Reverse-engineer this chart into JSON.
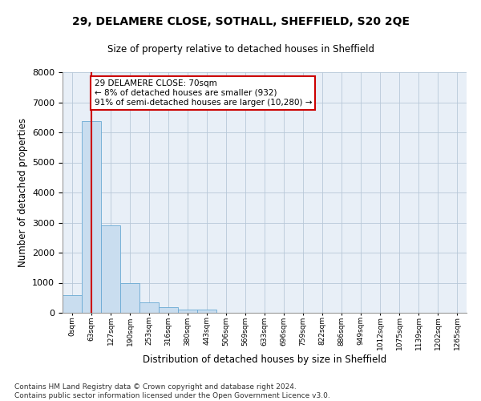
{
  "title": "29, DELAMERE CLOSE, SOTHALL, SHEFFIELD, S20 2QE",
  "subtitle": "Size of property relative to detached houses in Sheffield",
  "xlabel": "Distribution of detached houses by size in Sheffield",
  "ylabel": "Number of detached properties",
  "bar_color": "#c9ddef",
  "bar_edge_color": "#6aaad4",
  "background_color": "#ffffff",
  "plot_bg_color": "#e8eff7",
  "grid_color": "#b8c8d8",
  "annotation_box_color": "#cc0000",
  "vline_color": "#cc0000",
  "vline_x": 1.0,
  "annotation_text": "29 DELAMERE CLOSE: 70sqm\n← 8% of detached houses are smaller (932)\n91% of semi-detached houses are larger (10,280) →",
  "categories": [
    "0sqm",
    "63sqm",
    "127sqm",
    "190sqm",
    "253sqm",
    "316sqm",
    "380sqm",
    "443sqm",
    "506sqm",
    "569sqm",
    "633sqm",
    "696sqm",
    "759sqm",
    "822sqm",
    "886sqm",
    "949sqm",
    "1012sqm",
    "1075sqm",
    "1139sqm",
    "1202sqm",
    "1265sqm"
  ],
  "values": [
    580,
    6380,
    2900,
    990,
    360,
    175,
    115,
    95,
    0,
    0,
    0,
    0,
    0,
    0,
    0,
    0,
    0,
    0,
    0,
    0,
    0
  ],
  "ylim": [
    0,
    8000
  ],
  "yticks": [
    0,
    1000,
    2000,
    3000,
    4000,
    5000,
    6000,
    7000,
    8000
  ],
  "footnote": "Contains HM Land Registry data © Crown copyright and database right 2024.\nContains public sector information licensed under the Open Government Licence v3.0.",
  "figsize": [
    6.0,
    5.0
  ],
  "dpi": 100
}
